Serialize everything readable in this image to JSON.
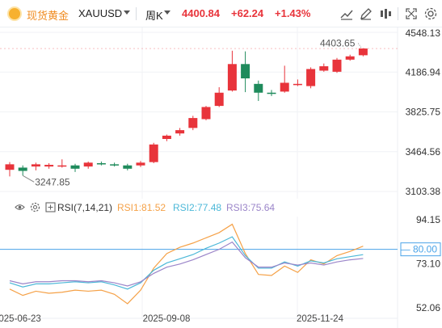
{
  "header": {
    "symbol_name": "现货黄金",
    "symbol_code": "XAUUSD",
    "period": "周K",
    "price": "4400.84",
    "change": "+62.24",
    "change_pct": "+1.43%",
    "toolbar_icons": [
      "line-chart-icon",
      "draw-icon",
      "indicator-icon",
      "fullscreen-icon",
      "settings-icon"
    ]
  },
  "chart_data": [
    {
      "type": "candlestick",
      "title": "",
      "ylim": [
        3103.38,
        4548.13
      ],
      "y_ticks": [
        "4548.13",
        "4186.94",
        "3825.75",
        "3464.56",
        "3103.38"
      ],
      "up_color": "#e8343b",
      "down_color": "#1f8b5c",
      "annotations": [
        {
          "label": "3247.85",
          "type": "low"
        },
        {
          "label": "4403.65",
          "type": "high"
        }
      ],
      "candles": [
        {
          "o": 3300,
          "c": 3350,
          "h": 3370,
          "l": 3240
        },
        {
          "o": 3320,
          "c": 3290,
          "h": 3340,
          "l": 3248
        },
        {
          "o": 3330,
          "c": 3350,
          "h": 3365,
          "l": 3295
        },
        {
          "o": 3330,
          "c": 3345,
          "h": 3360,
          "l": 3310
        },
        {
          "o": 3340,
          "c": 3340,
          "h": 3395,
          "l": 3320
        },
        {
          "o": 3340,
          "c": 3310,
          "h": 3355,
          "l": 3280
        },
        {
          "o": 3330,
          "c": 3365,
          "h": 3375,
          "l": 3310
        },
        {
          "o": 3360,
          "c": 3355,
          "h": 3375,
          "l": 3340
        },
        {
          "o": 3350,
          "c": 3340,
          "h": 3365,
          "l": 3330
        },
        {
          "o": 3340,
          "c": 3310,
          "h": 3355,
          "l": 3295
        },
        {
          "o": 3340,
          "c": 3365,
          "h": 3380,
          "l": 3325
        },
        {
          "o": 3370,
          "c": 3530,
          "h": 3545,
          "l": 3360
        },
        {
          "o": 3580,
          "c": 3610,
          "h": 3620,
          "l": 3560
        },
        {
          "o": 3630,
          "c": 3660,
          "h": 3680,
          "l": 3610
        },
        {
          "o": 3680,
          "c": 3770,
          "h": 3790,
          "l": 3660
        },
        {
          "o": 3760,
          "c": 3870,
          "h": 3880,
          "l": 3750
        },
        {
          "o": 3880,
          "c": 4000,
          "h": 4050,
          "l": 3870
        },
        {
          "o": 4020,
          "c": 4260,
          "h": 4381,
          "l": 4010
        },
        {
          "o": 4260,
          "c": 4130,
          "h": 4375,
          "l": 4005
        },
        {
          "o": 4080,
          "c": 4000,
          "h": 4110,
          "l": 3925
        },
        {
          "o": 4000,
          "c": 3990,
          "h": 4025,
          "l": 3970
        },
        {
          "o": 4010,
          "c": 4090,
          "h": 4245,
          "l": 4000
        },
        {
          "o": 4070,
          "c": 4080,
          "h": 4120,
          "l": 4060
        },
        {
          "o": 4060,
          "c": 4215,
          "h": 4230,
          "l": 4040
        },
        {
          "o": 4200,
          "c": 4240,
          "h": 4265,
          "l": 4190
        },
        {
          "o": 4190,
          "c": 4300,
          "h": 4315,
          "l": 4180
        },
        {
          "o": 4300,
          "c": 4330,
          "h": 4345,
          "l": 4290
        },
        {
          "o": 4340,
          "c": 4401,
          "h": 4404,
          "l": 4330
        }
      ]
    },
    {
      "type": "line",
      "title": "",
      "indicator": "RSI(7,14,21)",
      "ylim": [
        52.06,
        100
      ],
      "y_ticks": [
        "94.15",
        "73.10",
        "52.06"
      ],
      "reference_line": {
        "value": 80.0,
        "label": "80.00"
      },
      "x_ticks": [
        "2025-06-23",
        "2025-09-08",
        "2025-11-24"
      ],
      "series": [
        {
          "name": "RSI1",
          "latest": "81.52",
          "color": "#f5a147",
          "values": [
            61,
            58,
            60,
            59,
            59.5,
            60.5,
            60,
            60.5,
            58.5,
            54,
            60.5,
            71,
            78,
            81,
            83,
            85.5,
            88,
            92,
            78,
            68,
            67.5,
            72,
            69,
            75,
            73,
            77,
            79,
            81.52
          ]
        },
        {
          "name": "RSI2",
          "latest": "77.48",
          "color": "#4cb8d8",
          "values": [
            64,
            62,
            63.5,
            63.5,
            64,
            64.5,
            64,
            64.5,
            63,
            61,
            64,
            70,
            73.5,
            75.5,
            77.5,
            80.5,
            83,
            86,
            77,
            71,
            71,
            74,
            72,
            74.5,
            73.5,
            75.5,
            76.5,
            77.48
          ]
        },
        {
          "name": "RSI3",
          "latest": "75.64",
          "color": "#9b85c9",
          "values": [
            65,
            63.5,
            64.5,
            64.5,
            65,
            65,
            64.5,
            65,
            64,
            62.5,
            64.5,
            68.5,
            71.5,
            73,
            75,
            77.5,
            80,
            83.5,
            76,
            71.5,
            71.5,
            73.5,
            72.5,
            73.5,
            72.5,
            74,
            75,
            75.64
          ]
        }
      ]
    }
  ]
}
